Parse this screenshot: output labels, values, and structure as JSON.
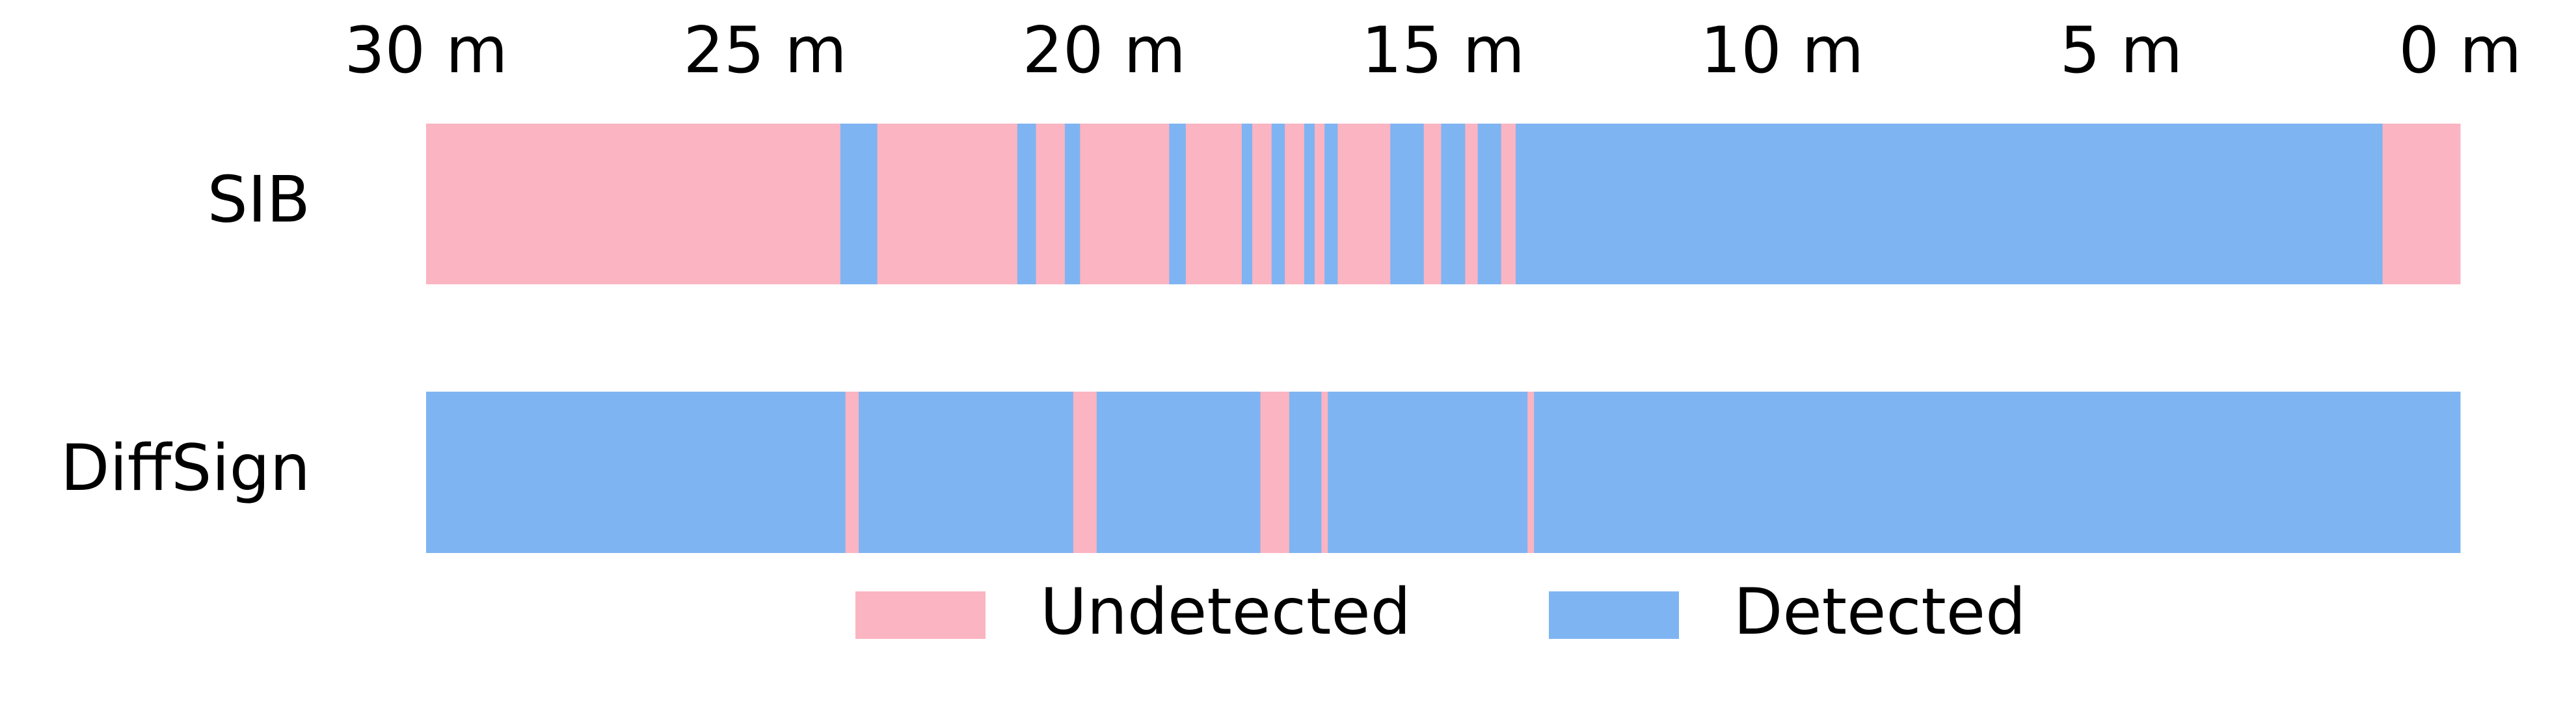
{
  "chart_data": {
    "type": "timeline",
    "categories": [
      "SIB",
      "DiffSign"
    ],
    "xlim": [
      30,
      0
    ],
    "xticks": [
      {
        "value": 30,
        "label": "30 m"
      },
      {
        "value": 25,
        "label": "25 m"
      },
      {
        "value": 20,
        "label": "20 m"
      },
      {
        "value": 15,
        "label": "15 m"
      },
      {
        "value": 10,
        "label": "10 m"
      },
      {
        "value": 5,
        "label": "5 m"
      },
      {
        "value": 0,
        "label": "0 m"
      }
    ],
    "series": [
      {
        "name": "Undetected",
        "color": "#fbb4c1",
        "intervals": [
          [
            [
              30,
              23.89
            ],
            [
              23.35,
              21.28
            ],
            [
              21.01,
              20.58
            ],
            [
              20.36,
              19.04
            ],
            [
              18.8,
              17.97
            ],
            [
              17.82,
              17.53
            ],
            [
              17.34,
              17.05
            ],
            [
              16.9,
              16.75
            ],
            [
              16.56,
              15.78
            ],
            [
              15.29,
              15.03
            ],
            [
              14.68,
              14.49
            ],
            [
              14.15,
              13.93
            ],
            [
              1.15,
              0
            ]
          ],
          [
            [
              23.82,
              23.62
            ],
            [
              20.46,
              20.11
            ],
            [
              17.7,
              17.27
            ],
            [
              16.8,
              16.7
            ],
            [
              13.76,
              13.66
            ]
          ]
        ]
      },
      {
        "name": "Detected",
        "color": "#7fb4f2",
        "intervals": [
          [
            [
              23.89,
              23.35
            ],
            [
              21.28,
              21.01
            ],
            [
              20.58,
              20.36
            ],
            [
              19.04,
              18.8
            ],
            [
              17.97,
              17.82
            ],
            [
              17.53,
              17.34
            ],
            [
              17.05,
              16.9
            ],
            [
              16.75,
              16.56
            ],
            [
              15.78,
              15.29
            ],
            [
              15.03,
              14.68
            ],
            [
              14.49,
              14.15
            ],
            [
              13.93,
              1.15
            ]
          ],
          [
            [
              30,
              23.82
            ],
            [
              23.62,
              20.46
            ],
            [
              20.11,
              17.7
            ],
            [
              17.27,
              16.8
            ],
            [
              16.7,
              13.76
            ],
            [
              13.66,
              0
            ]
          ]
        ]
      }
    ]
  }
}
